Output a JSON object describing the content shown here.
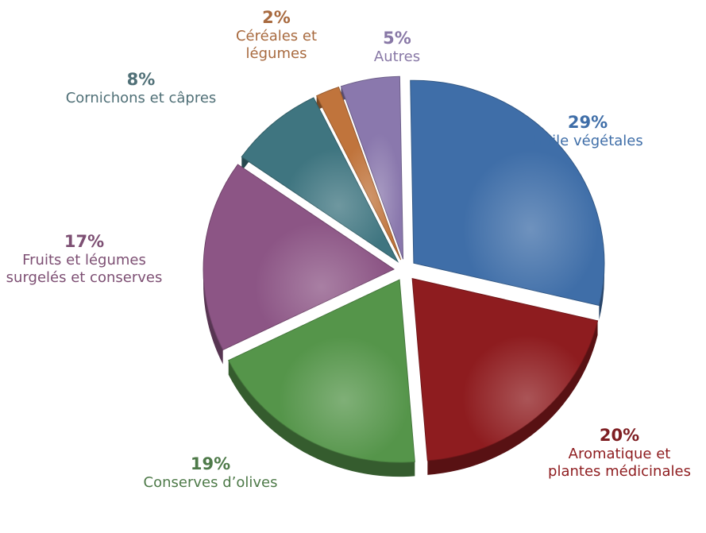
{
  "chart_data": {
    "type": "pie",
    "style": "3d-exploded",
    "slices": [
      {
        "label": "Huile végétales",
        "percent_label": "29%",
        "value": 29,
        "color": "#3f6ea8"
      },
      {
        "label": "Aromatique et\nplantes médicinales",
        "percent_label": "20%",
        "value": 20,
        "color": "#8e1c1f"
      },
      {
        "label": "Conserves d’olives",
        "percent_label": "19%",
        "value": 19,
        "color": "#55954a"
      },
      {
        "label": "Fruits et légumes\nsurgelés et conserves",
        "percent_label": "17%",
        "value": 17,
        "color": "#8c5585"
      },
      {
        "label": "Cornichons et câpres",
        "percent_label": "8%",
        "value": 8,
        "color": "#3f7580"
      },
      {
        "label": "Céréales et\nlégumes",
        "percent_label": "2%",
        "value": 2,
        "color": "#c0743c"
      },
      {
        "label": "Autres",
        "percent_label": "5%",
        "value": 5,
        "color": "#8a78ad"
      }
    ]
  },
  "label_colors": {
    "Huile végétales": "#3f6ea8",
    "Aromatique et plantes médicinales": "#8e1c1f",
    "Conserves d’olives": "#4e7a49",
    "Fruits et légumes surgelés et conserves": "#7d4f73",
    "Cornichons et câpres": "#507077",
    "Céréales et légumes": "#a86a3f",
    "Autres": "#8878a6"
  }
}
